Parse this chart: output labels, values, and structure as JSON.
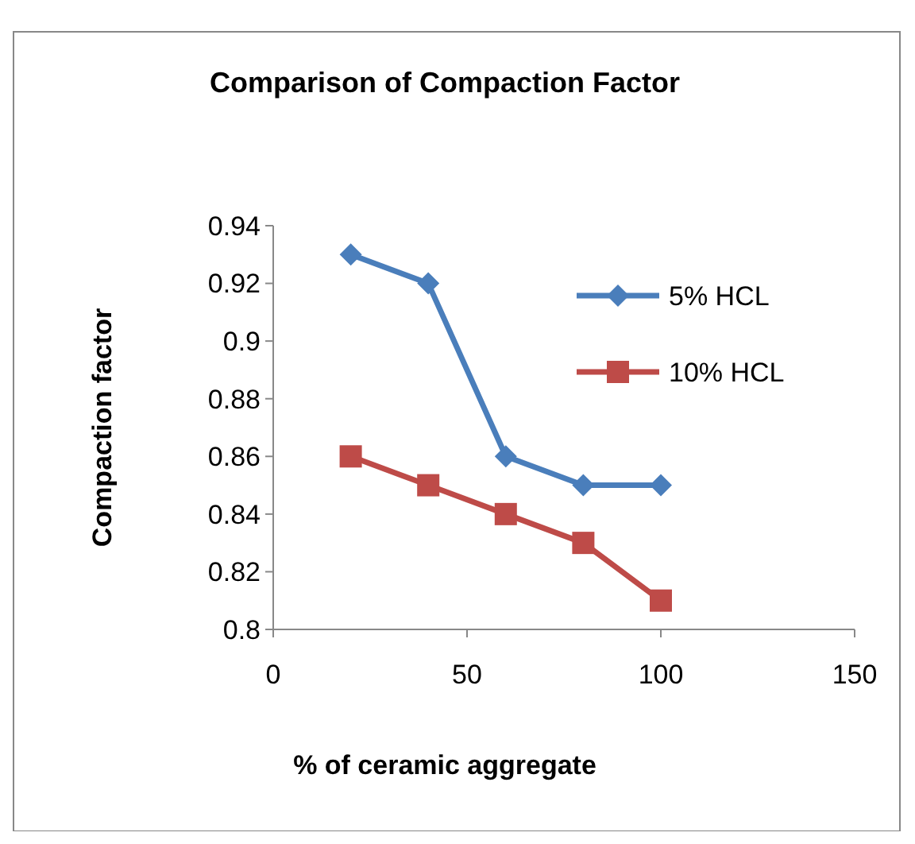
{
  "chart_data": {
    "type": "line",
    "title": "Comparison of Compaction Factor",
    "xlabel": "% of ceramic aggregate",
    "ylabel": "Compaction factor",
    "x": [
      20,
      40,
      60,
      80,
      100
    ],
    "series": [
      {
        "name": "5% HCL",
        "color": "#4a7ebb",
        "marker": "diamond",
        "values": [
          0.93,
          0.92,
          0.86,
          0.85,
          0.85
        ]
      },
      {
        "name": "10% HCL",
        "color": "#be4b48",
        "marker": "square",
        "values": [
          0.86,
          0.85,
          0.84,
          0.83,
          0.81
        ]
      }
    ],
    "xlim": [
      0,
      150
    ],
    "xticks": [
      0,
      50,
      100,
      150
    ],
    "ylim": [
      0.8,
      0.94
    ],
    "yticks": [
      0.8,
      0.82,
      0.84,
      0.86,
      0.88,
      0.9,
      0.92,
      0.94
    ],
    "grid": false,
    "legend": "right",
    "line_style": "solid"
  }
}
